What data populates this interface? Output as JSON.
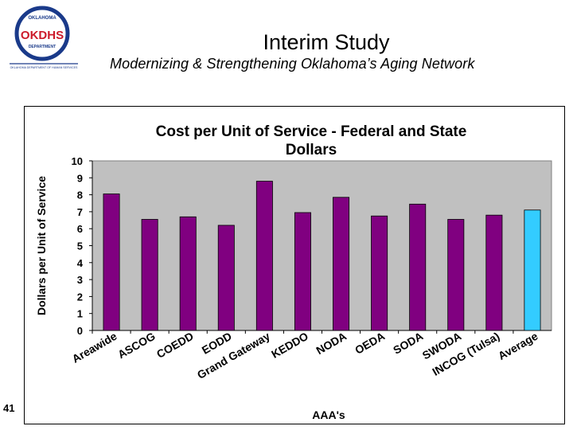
{
  "header": {
    "logo_text_top": "OKLAHOMA",
    "logo_text_main": "OKDHS",
    "logo_text_sub": "DEPARTMENT",
    "logo_caption": "OKLAHOMA DEPARTMENT OF HUMAN SERVICES",
    "title": "Interim Study",
    "subtitle": "Modernizing & Strengthening Oklahoma’s Aging Network"
  },
  "footer": {
    "page_number": "41"
  },
  "colors": {
    "bar": "#800080",
    "average_bar": "#33CCFF",
    "plot_bg": "#C0C0C0",
    "logo_ring": "#1a3a8a",
    "logo_red": "#cc1b2b"
  },
  "chart_data": {
    "type": "bar",
    "title_line1": "Cost per Unit of Service - Federal and State",
    "title_line2": "Dollars",
    "xlabel": "AAA's",
    "ylabel": "Dollars per Unit of Service",
    "ylim": [
      0,
      10
    ],
    "yticks": [
      "0",
      "1",
      "2",
      "3",
      "4",
      "5",
      "6",
      "7",
      "8",
      "9",
      "10"
    ],
    "grid": false,
    "legend": "none",
    "categories": [
      "Areawide",
      "ASCOG",
      "COEDD",
      "EODD",
      "Grand Gateway",
      "KEDDO",
      "NODA",
      "OEDA",
      "SODA",
      "SWODA",
      "INCOG (Tulsa)",
      "Average"
    ],
    "values": [
      8.05,
      6.55,
      6.7,
      6.2,
      8.8,
      6.95,
      7.85,
      6.75,
      7.45,
      6.55,
      6.8,
      7.1
    ],
    "highlight": "Average"
  }
}
